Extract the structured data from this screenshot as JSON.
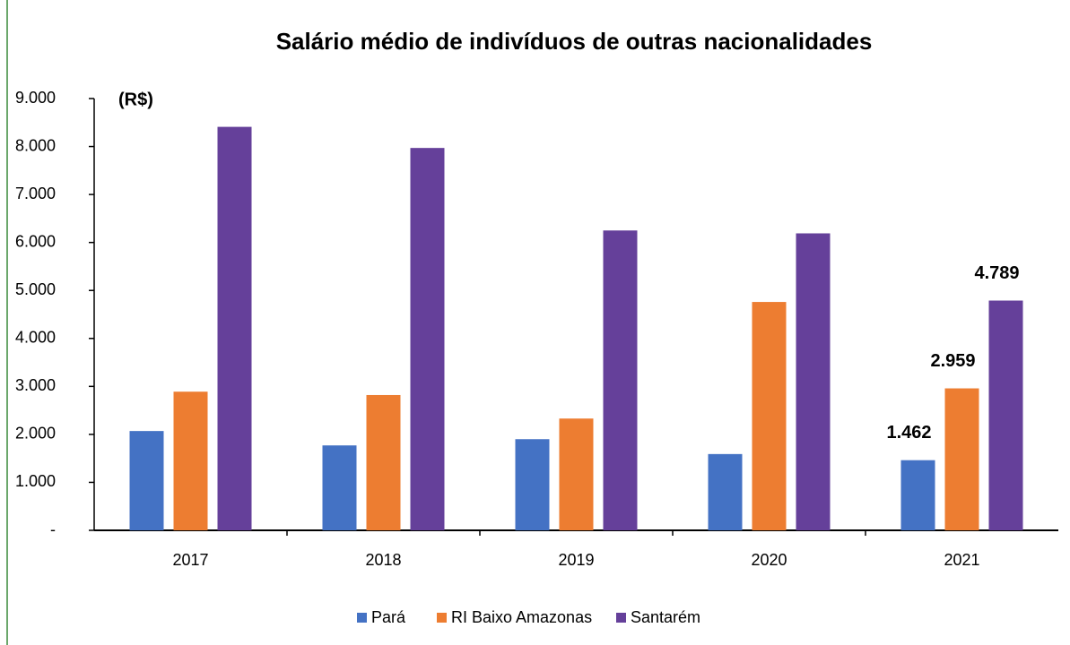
{
  "chart_data": {
    "type": "bar",
    "title": "Salário médio de indivíduos de outras nacionalidades",
    "y_label": "(R$)",
    "categories": [
      "2017",
      "2018",
      "2019",
      "2020",
      "2021"
    ],
    "series": [
      {
        "name": "Pará",
        "color": "#4472c4",
        "values": [
          2070,
          1770,
          1900,
          1590,
          1462
        ],
        "value_labels": [
          null,
          null,
          null,
          null,
          "1.462"
        ]
      },
      {
        "name": "RI Baixo Amazonas",
        "color": "#ed7d31",
        "values": [
          2890,
          2820,
          2330,
          4760,
          2959
        ],
        "value_labels": [
          null,
          null,
          null,
          null,
          "2.959"
        ]
      },
      {
        "name": "Santarém",
        "color": "#65409a",
        "values": [
          8410,
          7970,
          6250,
          6190,
          4789
        ],
        "value_labels": [
          null,
          null,
          null,
          null,
          "4.789"
        ]
      }
    ],
    "ylim": [
      0,
      9000
    ],
    "yticks": [
      {
        "value": 0,
        "label": "-"
      },
      {
        "value": 1000,
        "label": "1.000"
      },
      {
        "value": 2000,
        "label": "2.000"
      },
      {
        "value": 3000,
        "label": "3.000"
      },
      {
        "value": 4000,
        "label": "4.000"
      },
      {
        "value": 5000,
        "label": "5.000"
      },
      {
        "value": 6000,
        "label": "6.000"
      },
      {
        "value": 7000,
        "label": "7.000"
      },
      {
        "value": 8000,
        "label": "8.000"
      },
      {
        "value": 9000,
        "label": "9.000"
      }
    ],
    "grid": false,
    "legend": "bottom"
  }
}
